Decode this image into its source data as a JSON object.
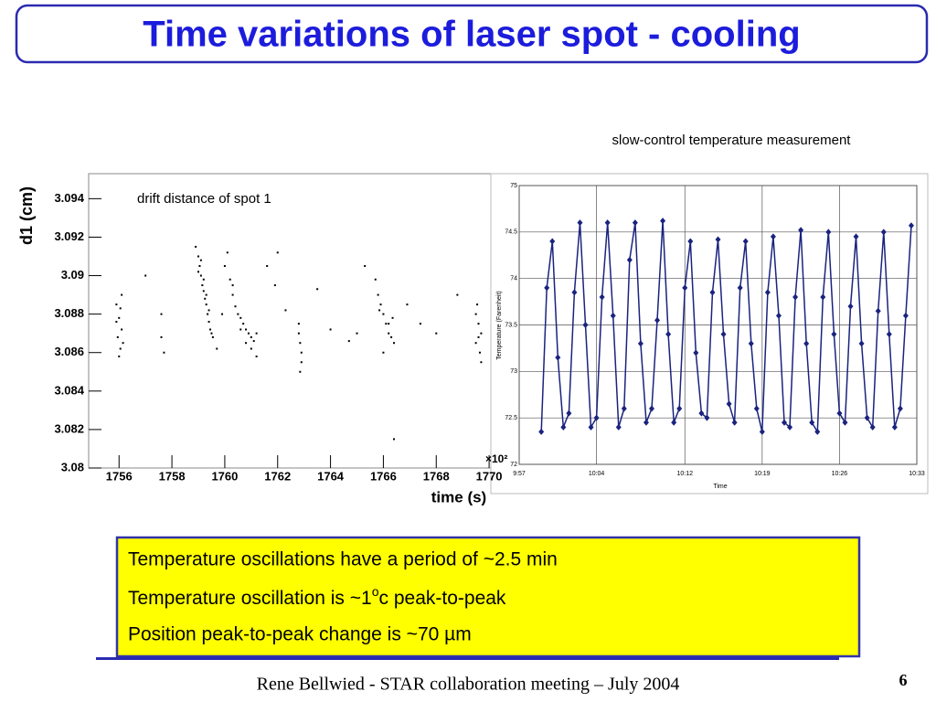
{
  "title": "Time variations of laser spot - cooling",
  "chart_data": [
    {
      "type": "scatter",
      "annotation": "drift distance of spot 1",
      "ylabel": "d1 (cm)",
      "xlabel": "time (s)",
      "xscale_note": "×10²",
      "color": "#000000",
      "grid": false,
      "xlim": [
        1754.85,
        1770.17
      ],
      "xticks": [
        1756,
        1758,
        1760,
        1762,
        1764,
        1766,
        1768,
        1770
      ],
      "ylim": [
        3.08,
        3.0953
      ],
      "yticks": [
        3.08,
        3.082,
        3.084,
        3.086,
        3.088,
        3.09,
        3.092,
        3.094
      ],
      "x": [
        1755.9,
        1756.0,
        1756.1,
        1755.95,
        1756.05,
        1756.15,
        1756.0,
        1756.1,
        1755.9,
        1756.05,
        1757.0,
        1757.6,
        1757.6,
        1757.7,
        1758.9,
        1759.0,
        1759.05,
        1759.1,
        1759.15,
        1759.2,
        1759.25,
        1759.3,
        1759.35,
        1759.4,
        1759.45,
        1759.5,
        1759.1,
        1759.2,
        1759.3,
        1759.4,
        1759.55,
        1759.0,
        1759.9,
        1759.7,
        1760.0,
        1760.1,
        1760.2,
        1760.3,
        1760.4,
        1760.5,
        1760.6,
        1760.7,
        1760.8,
        1760.9,
        1761.0,
        1761.1,
        1761.2,
        1760.3,
        1760.6,
        1761.0,
        1761.2,
        1760.8,
        1761.6,
        1762.0,
        1761.9,
        1762.3,
        1762.8,
        1762.85,
        1762.9,
        1762.8,
        1762.9,
        1762.85,
        1763.5,
        1764.0,
        1764.7,
        1765.3,
        1765.0,
        1765.7,
        1765.8,
        1765.9,
        1766.0,
        1766.1,
        1766.2,
        1766.3,
        1766.4,
        1766.0,
        1766.2,
        1765.85,
        1766.35,
        1766.9,
        1767.4,
        1768.0,
        1768.8,
        1766.4,
        1769.5,
        1769.6,
        1769.7,
        1769.5,
        1769.65,
        1769.55,
        1769.7,
        1769.6
      ],
      "y": [
        3.0885,
        3.0878,
        3.0872,
        3.0868,
        3.0883,
        3.0865,
        3.0858,
        3.089,
        3.0876,
        3.0862,
        3.09,
        3.0868,
        3.088,
        3.086,
        3.0915,
        3.091,
        3.0905,
        3.09,
        3.0895,
        3.0892,
        3.0888,
        3.0885,
        3.088,
        3.0876,
        3.0872,
        3.087,
        3.0908,
        3.0898,
        3.089,
        3.0882,
        3.0868,
        3.0902,
        3.088,
        3.0862,
        3.0905,
        3.0912,
        3.0898,
        3.089,
        3.0884,
        3.088,
        3.0878,
        3.0875,
        3.0872,
        3.087,
        3.0868,
        3.0866,
        3.087,
        3.0895,
        3.0872,
        3.0862,
        3.0858,
        3.0865,
        3.0905,
        3.0912,
        3.0895,
        3.0882,
        3.087,
        3.0865,
        3.086,
        3.0875,
        3.0855,
        3.085,
        3.0893,
        3.0872,
        3.0866,
        3.0905,
        3.087,
        3.0898,
        3.089,
        3.0885,
        3.088,
        3.0875,
        3.087,
        3.0868,
        3.0865,
        3.086,
        3.0875,
        3.0882,
        3.0878,
        3.0885,
        3.0875,
        3.087,
        3.089,
        3.0815,
        3.088,
        3.0875,
        3.087,
        3.0865,
        3.086,
        3.0885,
        3.0855,
        3.0868
      ]
    },
    {
      "type": "line",
      "title": "slow-control temperature measurement",
      "ylabel": "Temperature (Farenheit)",
      "xlabel": "Time",
      "color": "#1a237e",
      "grid": true,
      "xlim": [
        597,
        633
      ],
      "xticks": [
        {
          "value": 597,
          "label": "9:57"
        },
        {
          "value": 604,
          "label": "10:04"
        },
        {
          "value": 612,
          "label": "10:12"
        },
        {
          "value": 619,
          "label": "10:19"
        },
        {
          "value": 626,
          "label": "10:26"
        },
        {
          "value": 633,
          "label": "10:33"
        }
      ],
      "ylim": [
        72,
        75
      ],
      "yticks": [
        72,
        72.5,
        73,
        73.5,
        74,
        74.5,
        75
      ],
      "x": [
        599,
        599.5,
        600,
        600.5,
        601,
        601.5,
        602,
        602.5,
        603,
        603.5,
        604,
        604.5,
        605,
        605.5,
        606,
        606.5,
        607,
        607.5,
        608,
        608.5,
        609,
        609.5,
        610,
        610.5,
        611,
        611.5,
        612,
        612.5,
        613,
        613.5,
        614,
        614.5,
        615,
        615.5,
        616,
        616.5,
        617,
        617.5,
        618,
        618.5,
        619,
        619.5,
        620,
        620.5,
        621,
        621.5,
        622,
        622.5,
        623,
        623.5,
        624,
        624.5,
        625,
        625.5,
        626,
        626.5,
        627,
        627.5,
        628,
        628.5,
        629,
        629.5,
        630,
        630.5,
        631,
        631.5,
        632,
        632.5
      ],
      "values": [
        72.35,
        73.9,
        74.4,
        73.15,
        72.4,
        72.55,
        73.85,
        74.6,
        73.5,
        72.4,
        72.5,
        73.8,
        74.6,
        73.6,
        72.4,
        72.6,
        74.2,
        74.6,
        73.3,
        72.45,
        72.6,
        73.55,
        74.62,
        73.4,
        72.45,
        72.6,
        73.9,
        74.4,
        73.2,
        72.55,
        72.5,
        73.85,
        74.42,
        73.4,
        72.65,
        72.45,
        73.9,
        74.4,
        73.3,
        72.6,
        72.35,
        73.85,
        74.45,
        73.6,
        72.45,
        72.4,
        73.8,
        74.52,
        73.3,
        72.45,
        72.35,
        73.8,
        74.5,
        73.4,
        72.55,
        72.45,
        73.7,
        74.45,
        73.3,
        72.5,
        72.4,
        73.65,
        74.5,
        73.4,
        72.4,
        72.6,
        73.6,
        74.57
      ]
    }
  ],
  "notes": [
    "Temperature oscillations have a period of ~2.5 min",
    [
      "Temperature oscillation is ~1",
      "o",
      "c peak-to-peak"
    ],
    "Position peak-to-peak change is ~70 µm"
  ],
  "footer": "Rene Bellwied - STAR collaboration meeting – July 2004",
  "page": "6"
}
